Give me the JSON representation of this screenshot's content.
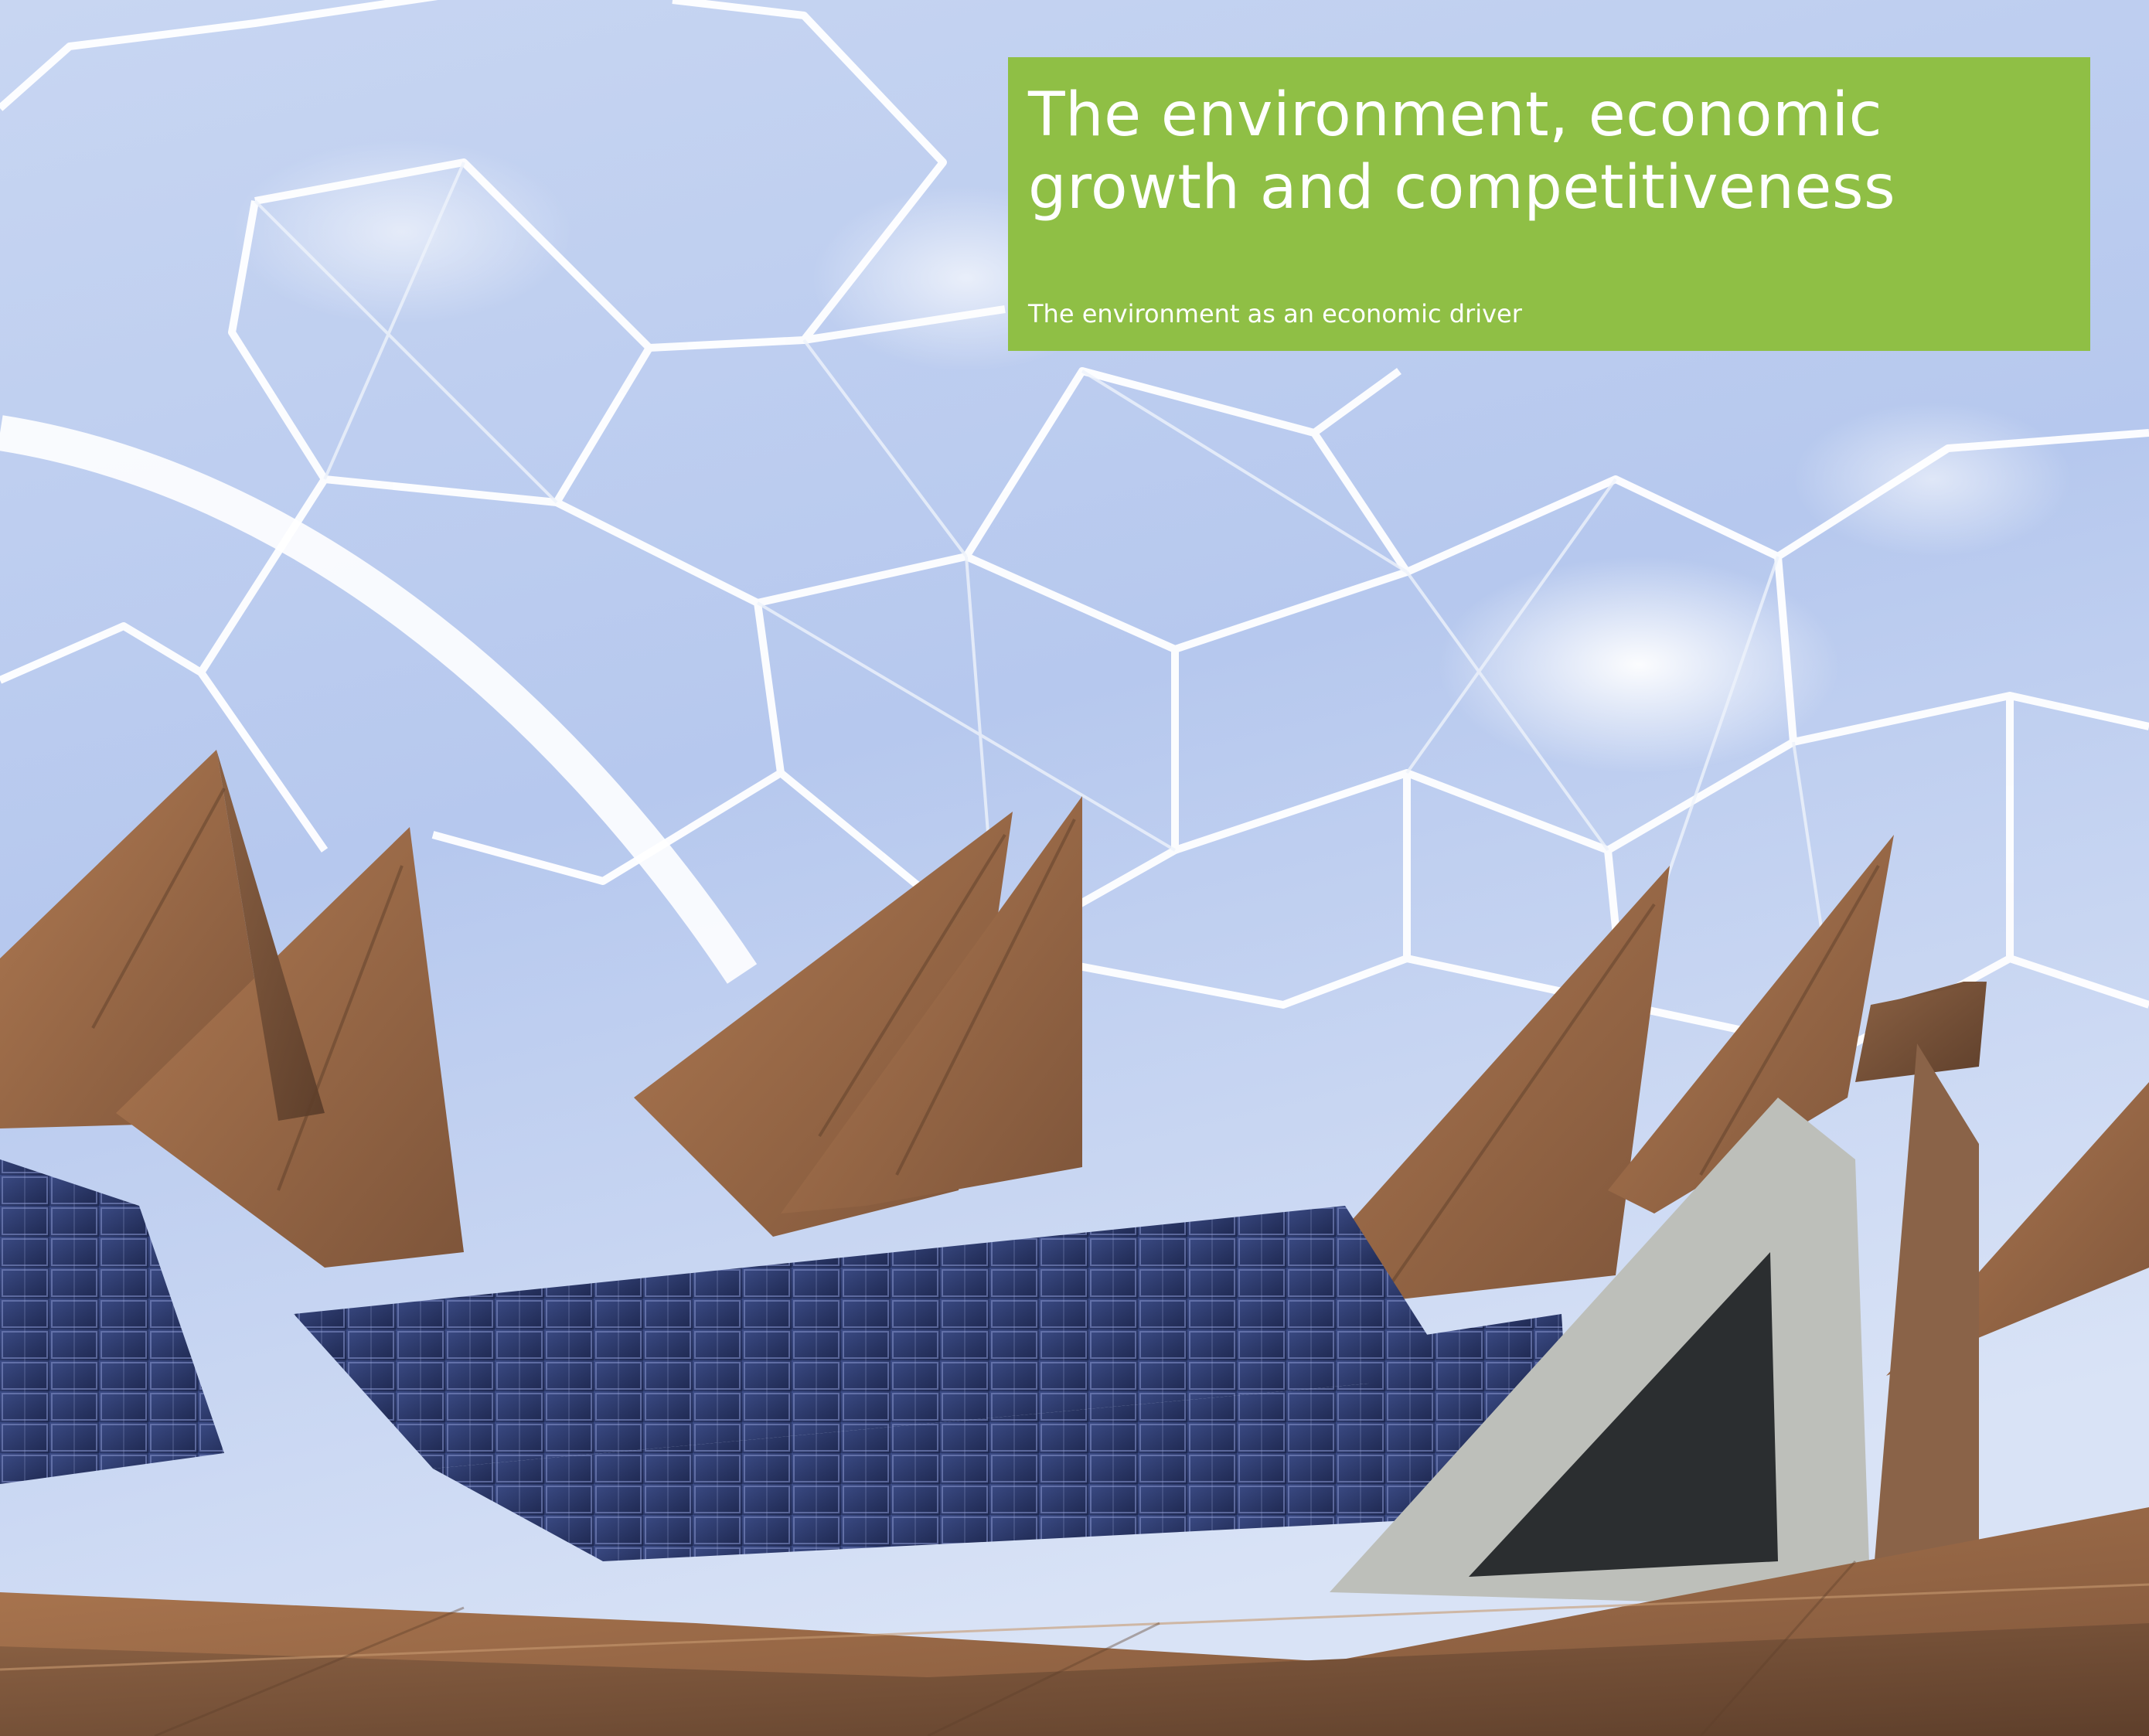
{
  "cover": {
    "title_line1": "The environment, economic",
    "title_line2": "growth and competitiveness",
    "subtitle": "The environment as an economic driver"
  },
  "photo": {
    "icon": "photo-icon",
    "content": "Geodesic biome domes with copper-clad sawtooth roofs and solar panels"
  },
  "colors": {
    "title_box": "#8fbf45",
    "sky": "#cfdcf3",
    "dome_strut": "#ffffff",
    "copper_roof": "#9a6a46",
    "solar_panel": "#2c3b6e"
  }
}
